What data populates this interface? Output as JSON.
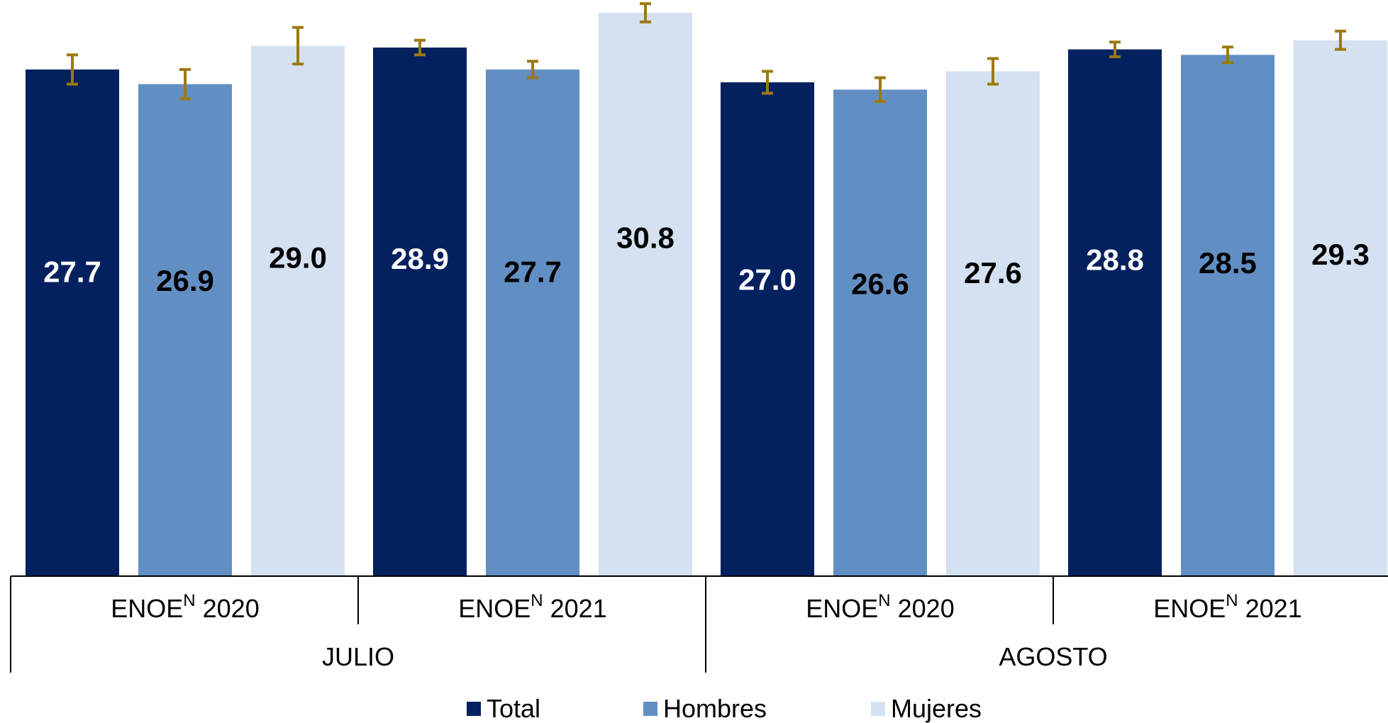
{
  "chart_data": {
    "type": "bar",
    "categories": [
      {
        "label": "ENOE",
        "superscript": "N",
        "year": "2020",
        "group": "JULIO"
      },
      {
        "label": "ENOE",
        "superscript": "N",
        "year": "2021",
        "group": "JULIO"
      },
      {
        "label": "ENOE",
        "superscript": "N",
        "year": "2020",
        "group": "AGOSTO"
      },
      {
        "label": "ENOE",
        "superscript": "N",
        "year": "2021",
        "group": "AGOSTO"
      }
    ],
    "groups": [
      "JULIO",
      "AGOSTO"
    ],
    "series": [
      {
        "name": "Total",
        "color": "#03215e",
        "label_color": "#ffffff",
        "values": [
          27.7,
          28.9,
          27.0,
          28.8
        ],
        "labels": [
          "27.7",
          "28.9",
          "27.0",
          "28.8"
        ],
        "error": [
          0.8,
          0.4,
          0.6,
          0.4
        ]
      },
      {
        "name": "Hombres",
        "color": "#628fc3",
        "label_color": "#000000",
        "values": [
          26.9,
          27.7,
          26.6,
          28.5
        ],
        "labels": [
          "26.9",
          "27.7",
          "26.6",
          "28.5"
        ],
        "error": [
          0.8,
          0.45,
          0.65,
          0.43
        ]
      },
      {
        "name": "Mujeres",
        "color": "#d4e1f0",
        "label_color": "#000000",
        "values": [
          29.0,
          30.8,
          27.6,
          29.3
        ],
        "labels": [
          "29.0",
          "30.8",
          "27.6",
          "29.3"
        ],
        "error": [
          1.0,
          0.5,
          0.7,
          0.5
        ]
      }
    ],
    "error_bar_color": "#9c7a10",
    "ylim": [
      0,
      31.5
    ],
    "legend_position": "bottom",
    "title": "",
    "xlabel": "",
    "ylabel": ""
  }
}
